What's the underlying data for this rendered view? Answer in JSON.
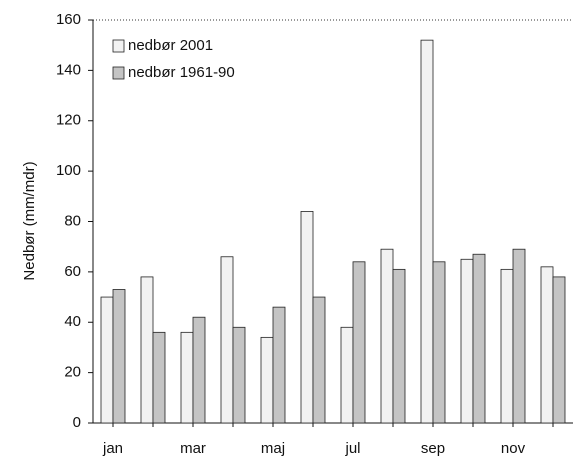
{
  "chart_data": {
    "type": "bar",
    "y_label": "Nedbør (mm/mdr)",
    "categories": [
      "jan",
      null,
      "mar",
      null,
      "maj",
      null,
      "jul",
      null,
      "sep",
      null,
      "nov",
      null
    ],
    "series": [
      {
        "name": "nedbør 2001",
        "color": "#f2f2f2",
        "values": [
          50,
          58,
          36,
          66,
          34,
          84,
          38,
          69,
          152,
          65,
          61,
          62
        ]
      },
      {
        "name": "nedbør 1961-90",
        "color": "#c4c4c4",
        "values": [
          53,
          36,
          42,
          38,
          46,
          50,
          64,
          61,
          64,
          67,
          69,
          58
        ]
      }
    ],
    "ylim": [
      0,
      160
    ],
    "yticks": [
      0,
      20,
      40,
      60,
      80,
      100,
      120,
      140,
      160
    ],
    "legend": "top-left"
  }
}
